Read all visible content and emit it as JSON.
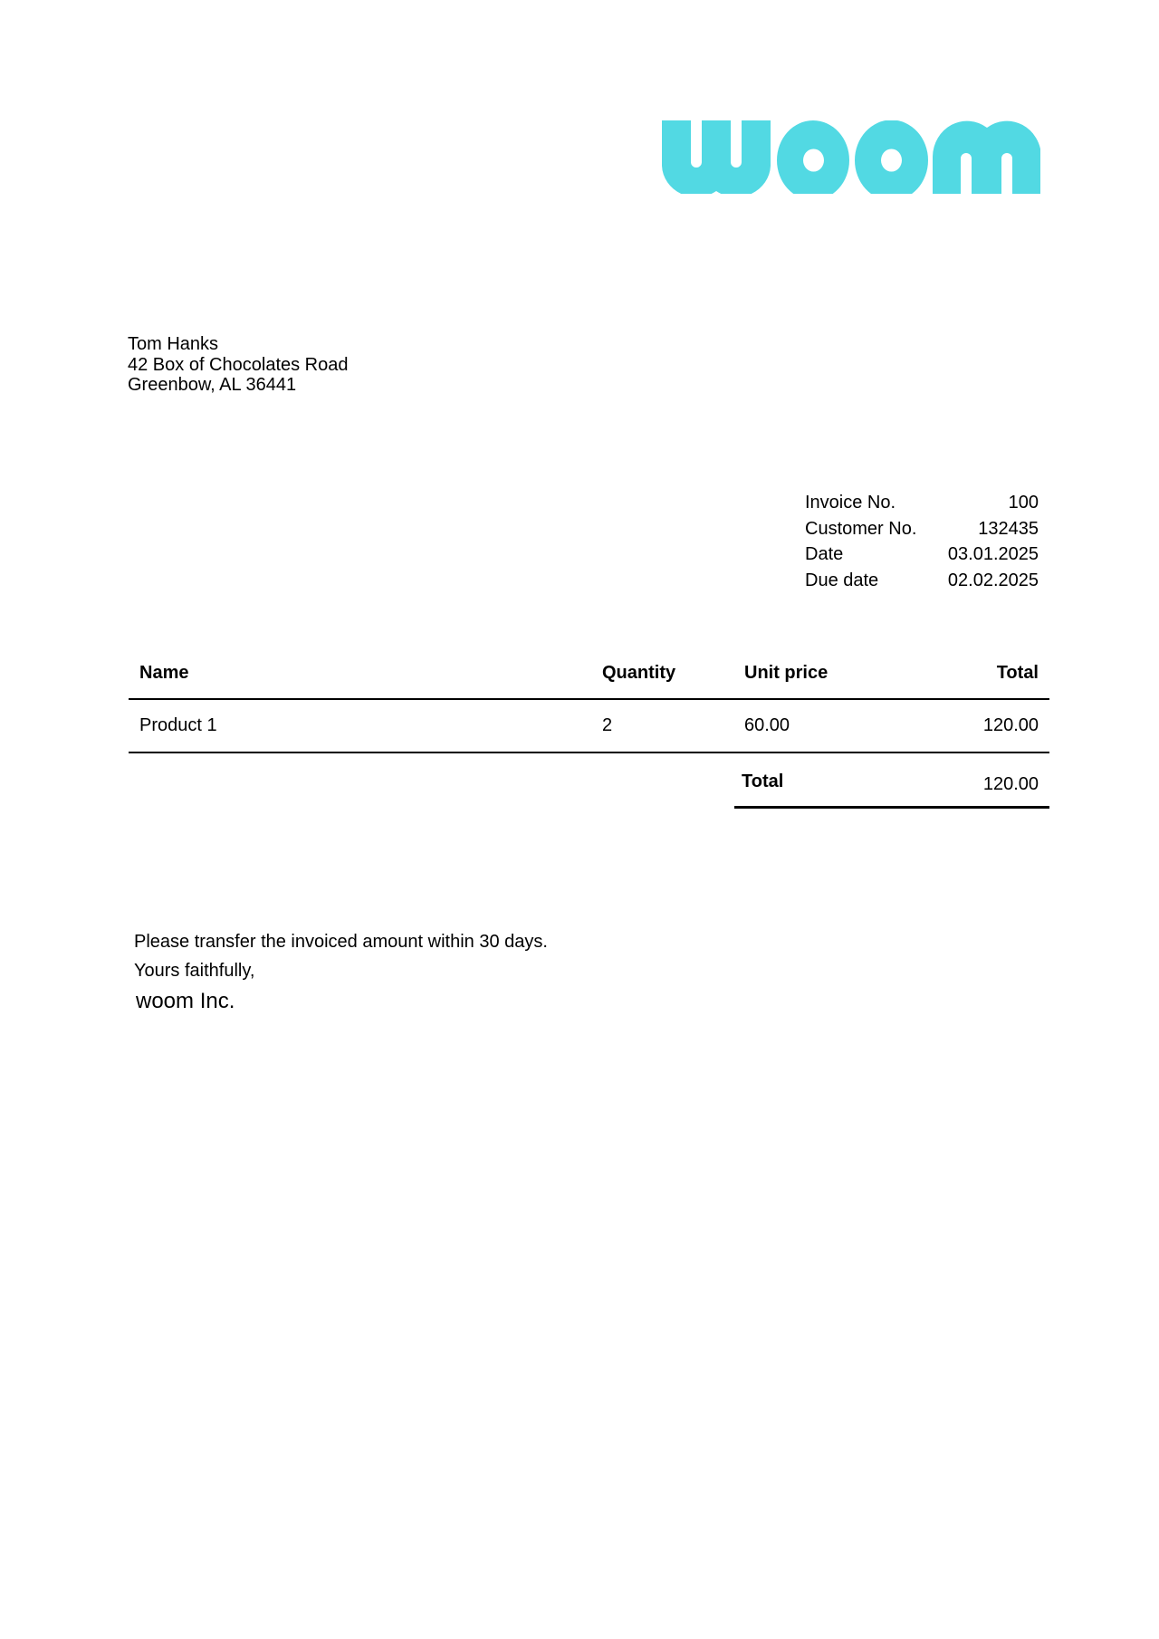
{
  "logo": {
    "text": "woom",
    "color": "#52d9e3"
  },
  "recipient": {
    "name": "Tom Hanks",
    "street": "42 Box of Chocolates Road",
    "city": "Greenbow, AL 36441"
  },
  "meta": [
    {
      "label": "Invoice No.",
      "value": "100"
    },
    {
      "label": "Customer No.",
      "value": "132435"
    },
    {
      "label": "Date",
      "value": "03.01.2025"
    },
    {
      "label": "Due date",
      "value": "02.02.2025"
    }
  ],
  "table": {
    "headers": {
      "name": "Name",
      "quantity": "Quantity",
      "unit_price": "Unit price",
      "total": "Total"
    },
    "rows": [
      {
        "name": "Product 1",
        "quantity": "2",
        "unit_price": "60.00",
        "total": "120.00"
      }
    ],
    "grand_total_label": "Total",
    "grand_total": "120.00"
  },
  "footer": {
    "note": "Please transfer the invoiced amount within 30 days.",
    "closing": "Yours faithfully,",
    "company": "woom Inc."
  }
}
